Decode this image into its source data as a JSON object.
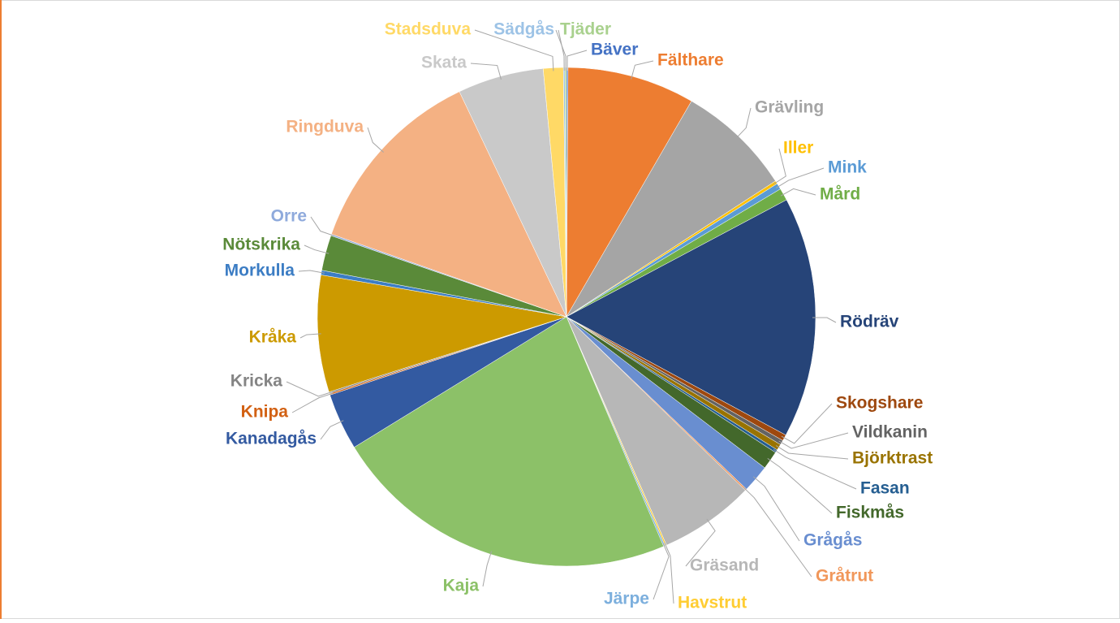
{
  "chart_data": {
    "type": "pie",
    "categories": [
      "Bäver",
      "Fälthare",
      "Grävling",
      "Iller",
      "Mink",
      "Mård",
      "Rödräv",
      "Skogshare",
      "Vildkanin",
      "Björktrast",
      "Fasan",
      "Fiskmås",
      "Grågås",
      "Gråtrut",
      "Gräsand",
      "Havstrut",
      "Järpe",
      "Kaja",
      "Kanadagås",
      "Knipa",
      "Kricka",
      "Kråka",
      "Morkulla",
      "Nötskrika",
      "Orre",
      "Ringduva",
      "Skata",
      "Stadsduva",
      "Sädgås",
      "Tjäder"
    ],
    "values": [
      0.1,
      8.3,
      7.5,
      0.2,
      0.4,
      0.8,
      15.7,
      0.4,
      0.3,
      0.4,
      0.2,
      1.2,
      1.8,
      0.1,
      6.2,
      0.1,
      0.1,
      22.7,
      3.7,
      0.1,
      0.1,
      7.6,
      0.3,
      2.3,
      0.1,
      12.6,
      5.6,
      1.3,
      0.1,
      0.1
    ],
    "colors": [
      "#4472c4",
      "#ed7d31",
      "#a5a5a5",
      "#ffc000",
      "#5b9bd5",
      "#70ad47",
      "#264478",
      "#9e480e",
      "#636363",
      "#997300",
      "#255e91",
      "#43682b",
      "#698ed0",
      "#f1975a",
      "#b7b7b7",
      "#ffcd33",
      "#7cafdd",
      "#8cc168",
      "#335aa1",
      "#d26012",
      "#848484",
      "#cc9a00",
      "#3c7dc4",
      "#5a8a39",
      "#8faadc",
      "#f4b183",
      "#c9c9c9",
      "#ffd966",
      "#9dc3e6",
      "#a9d18e"
    ]
  }
}
